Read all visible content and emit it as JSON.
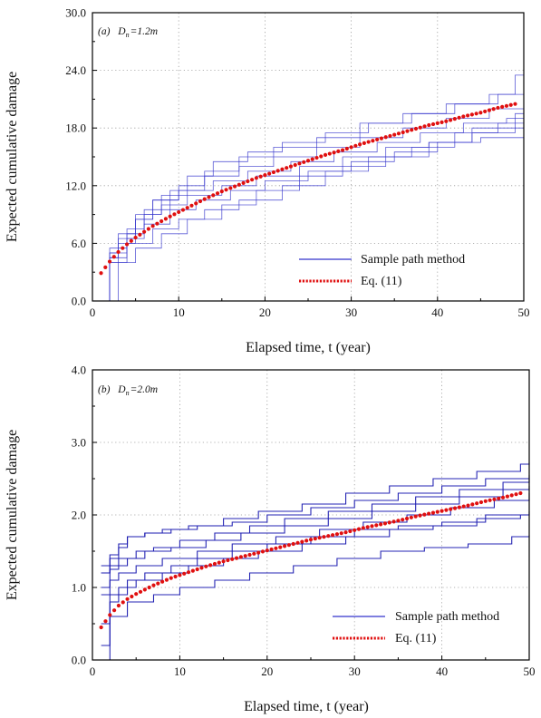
{
  "colors": {
    "sample": "#3333cc",
    "sample_dark": "#1a1ab0",
    "eq": "#e01010",
    "frame": "#000000",
    "grid": "#9a9a9a"
  },
  "chart_data": [
    {
      "type": "line",
      "panel_label": "(a)",
      "annotation_symbol": "D",
      "annotation_subscript": "n",
      "annotation_value": "=1.2m",
      "xlabel": "Elapsed time, t (year)",
      "ylabel": "Expected cumulative damage",
      "xlim": [
        0,
        50
      ],
      "ylim": [
        0,
        30
      ],
      "xticks": [
        "0",
        "10",
        "20",
        "30",
        "40",
        "50"
      ],
      "yticks": [
        "0.0",
        "6.0",
        "12.0",
        "18.0",
        "24.0",
        "30.0"
      ],
      "grid": true,
      "legend_position": "lower-right",
      "legend": [
        "Sample path method",
        "Eq. (11)"
      ],
      "series": [
        {
          "name": "Sample path method",
          "style": "step",
          "paths": [
            {
              "x": [
                1,
                2,
                4,
                6,
                9,
                12,
                16,
                20,
                25,
                30,
                35,
                40,
                45,
                50
              ],
              "y": [
                0,
                4.5,
                6.5,
                8.0,
                9.5,
                10.5,
                11.5,
                12.5,
                13.5,
                14.5,
                15.5,
                16.5,
                17.0,
                17.5
              ]
            },
            {
              "x": [
                1,
                2,
                3,
                5,
                8,
                11,
                15,
                19,
                24,
                29,
                34,
                39,
                44,
                49,
                50
              ],
              "y": [
                0,
                5.0,
                7.0,
                9.0,
                10.0,
                11.0,
                12.0,
                13.0,
                14.0,
                15.0,
                16.0,
                16.5,
                17.5,
                18.0,
                18.0
              ]
            },
            {
              "x": [
                1,
                2,
                4,
                6,
                9,
                13,
                17,
                21,
                26,
                31,
                36,
                41,
                46,
                50
              ],
              "y": [
                0,
                5.5,
                7.5,
                9.5,
                11.5,
                13.0,
                14.0,
                15.0,
                16.0,
                17.0,
                18.0,
                19.0,
                20.0,
                20.5
              ]
            },
            {
              "x": [
                1,
                3,
                5,
                7,
                10,
                14,
                18,
                23,
                28,
                33,
                38,
                43,
                48,
                50
              ],
              "y": [
                0,
                6.0,
                8.5,
                10.5,
                11.5,
                12.5,
                13.5,
                14.5,
                15.5,
                16.5,
                17.5,
                18.5,
                19.0,
                19.5
              ]
            },
            {
              "x": [
                1,
                2,
                4,
                6,
                8,
                11,
                14,
                18,
                22,
                27,
                32,
                37,
                42,
                47,
                50
              ],
              "y": [
                0,
                5.0,
                7.0,
                9.0,
                11.0,
                13.0,
                14.5,
                15.5,
                16.5,
                17.5,
                18.5,
                19.5,
                20.5,
                21.5,
                22.0
              ]
            },
            {
              "x": [
                1,
                2,
                3,
                5,
                7,
                10,
                13,
                17,
                21,
                26,
                31,
                36,
                41,
                46,
                49,
                50
              ],
              "y": [
                0,
                4.5,
                6.5,
                8.5,
                10.5,
                12.0,
                13.5,
                15.0,
                16.0,
                17.0,
                18.5,
                19.5,
                20.5,
                21.5,
                23.5,
                24.0
              ]
            },
            {
              "x": [
                1,
                2,
                4,
                7,
                10,
                13,
                17,
                22,
                27,
                32,
                37,
                42,
                47,
                50
              ],
              "y": [
                0,
                4.0,
                6.0,
                7.5,
                8.5,
                9.5,
                10.5,
                12.0,
                13.5,
                15.0,
                16.0,
                17.5,
                18.5,
                19.0
              ]
            },
            {
              "x": [
                1,
                2,
                5,
                8,
                11,
                15,
                19,
                24,
                29,
                34,
                39,
                44,
                49,
                50
              ],
              "y": [
                0,
                4.0,
                5.5,
                7.0,
                8.5,
                10.0,
                11.5,
                13.0,
                14.0,
                15.0,
                16.5,
                18.0,
                19.5,
                20.0
              ]
            }
          ]
        },
        {
          "name": "Eq. (11)",
          "style": "dotted",
          "x": [
            1,
            2,
            3,
            4,
            5,
            7,
            9,
            11,
            13,
            15,
            17,
            19,
            21,
            23,
            25,
            27,
            29,
            31,
            33,
            35,
            37,
            39,
            41,
            43,
            45,
            47,
            49
          ],
          "y": [
            2.9,
            4.1,
            5.1,
            5.9,
            6.6,
            7.8,
            8.8,
            9.7,
            10.6,
            11.4,
            12.1,
            12.8,
            13.4,
            14.0,
            14.6,
            15.2,
            15.7,
            16.3,
            16.8,
            17.3,
            17.8,
            18.3,
            18.7,
            19.2,
            19.6,
            20.1,
            20.5
          ]
        }
      ]
    },
    {
      "type": "line",
      "panel_label": "(b)",
      "annotation_symbol": "D",
      "annotation_subscript": "n",
      "annotation_value": "=2.0m",
      "xlabel": "Elapsed time, t (year)",
      "ylabel": "Expected cumulative damage",
      "xlim": [
        0,
        50
      ],
      "ylim": [
        0,
        4
      ],
      "xticks": [
        "0",
        "10",
        "20",
        "30",
        "40",
        "50"
      ],
      "yticks": [
        "0.0",
        "1.0",
        "2.0",
        "3.0",
        "4.0"
      ],
      "grid": true,
      "legend_position": "lower-right",
      "legend": [
        "Sample path method",
        "Eq. (11)"
      ],
      "series": [
        {
          "name": "Sample path method",
          "style": "step",
          "paths": [
            {
              "x": [
                1,
                2,
                4,
                7,
                10,
                14,
                18,
                23,
                28,
                33,
                38,
                43,
                48,
                50
              ],
              "y": [
                0,
                0.6,
                0.8,
                0.9,
                1.0,
                1.1,
                1.2,
                1.3,
                1.4,
                1.5,
                1.55,
                1.6,
                1.7,
                1.72
              ]
            },
            {
              "x": [
                1,
                2,
                3,
                5,
                8,
                11,
                15,
                19,
                24,
                29,
                34,
                39,
                44,
                49,
                50
              ],
              "y": [
                0.2,
                0.8,
                1.0,
                1.1,
                1.2,
                1.3,
                1.4,
                1.5,
                1.6,
                1.7,
                1.8,
                1.85,
                1.95,
                2.0,
                2.0
              ]
            },
            {
              "x": [
                1,
                2,
                4,
                6,
                9,
                12,
                16,
                20,
                25,
                30,
                35,
                40,
                45,
                50
              ],
              "y": [
                0.5,
                0.9,
                1.1,
                1.2,
                1.3,
                1.4,
                1.5,
                1.6,
                1.7,
                1.8,
                1.85,
                1.9,
                2.0,
                2.05
              ]
            },
            {
              "x": [
                1,
                2,
                3,
                5,
                8,
                12,
                16,
                21,
                26,
                31,
                36,
                41,
                46,
                50
              ],
              "y": [
                0.9,
                1.1,
                1.2,
                1.3,
                1.4,
                1.5,
                1.6,
                1.7,
                1.8,
                1.9,
                2.0,
                2.1,
                2.2,
                2.3
              ]
            },
            {
              "x": [
                1,
                2,
                4,
                6,
                9,
                13,
                17,
                22,
                27,
                32,
                37,
                42,
                47,
                50
              ],
              "y": [
                1.2,
                1.3,
                1.4,
                1.5,
                1.55,
                1.65,
                1.75,
                1.85,
                1.95,
                2.05,
                2.15,
                2.25,
                2.35,
                2.4
              ]
            },
            {
              "x": [
                1,
                2,
                3,
                5,
                7,
                10,
                14,
                18,
                22,
                27,
                32,
                37,
                42,
                47,
                50
              ],
              "y": [
                1.0,
                1.25,
                1.4,
                1.5,
                1.55,
                1.65,
                1.75,
                1.85,
                1.95,
                2.05,
                2.15,
                2.25,
                2.35,
                2.45,
                2.5
              ]
            },
            {
              "x": [
                1,
                2,
                3,
                4,
                6,
                9,
                12,
                16,
                20,
                25,
                30,
                35,
                40,
                45,
                50
              ],
              "y": [
                1.3,
                1.45,
                1.6,
                1.7,
                1.75,
                1.8,
                1.85,
                1.9,
                2.0,
                2.1,
                2.2,
                2.3,
                2.4,
                2.5,
                2.55
              ]
            },
            {
              "x": [
                1,
                2,
                3,
                4,
                6,
                8,
                11,
                15,
                19,
                24,
                29,
                34,
                39,
                44,
                49,
                50
              ],
              "y": [
                1.2,
                1.4,
                1.55,
                1.7,
                1.75,
                1.8,
                1.85,
                1.95,
                2.05,
                2.15,
                2.3,
                2.4,
                2.5,
                2.6,
                2.7,
                2.72
              ]
            }
          ]
        },
        {
          "name": "Eq. (11)",
          "style": "dotted",
          "x": [
            1,
            2,
            3,
            4,
            5,
            7,
            9,
            11,
            13,
            15,
            17,
            19,
            21,
            23,
            25,
            27,
            29,
            31,
            33,
            35,
            37,
            39,
            41,
            43,
            45,
            47,
            49
          ],
          "y": [
            0.45,
            0.62,
            0.75,
            0.84,
            0.91,
            1.03,
            1.13,
            1.21,
            1.29,
            1.36,
            1.42,
            1.48,
            1.54,
            1.6,
            1.66,
            1.71,
            1.76,
            1.82,
            1.87,
            1.92,
            1.98,
            2.03,
            2.08,
            2.13,
            2.19,
            2.24,
            2.3
          ]
        }
      ]
    }
  ]
}
